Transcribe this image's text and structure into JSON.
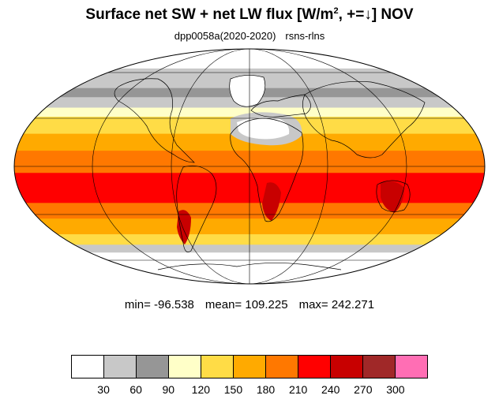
{
  "title": {
    "main": "Surface net SW + net LW flux [W/m",
    "sup": "2",
    "rest": ", +=↓]  NOV"
  },
  "subtitle": {
    "left": "dpp0058a(2020-2020)",
    "right": "rsns-rlns"
  },
  "stats": {
    "min": "min= -96.538",
    "mean": "mean= 109.225",
    "max": "max= 242.271"
  },
  "colorbar": {
    "colors": [
      "#ffffff",
      "#c8c8c8",
      "#969696",
      "#ffffc8",
      "#ffdc46",
      "#ffaa00",
      "#ff7800",
      "#ff0000",
      "#c80000",
      "#a02828",
      "#ff6eb4"
    ],
    "labels": [
      "30",
      "60",
      "90",
      "120",
      "150",
      "180",
      "210",
      "240",
      "270",
      "300"
    ]
  },
  "map_bands": [
    {
      "from_lat": 90,
      "to_lat": 75,
      "color": "#ffffff"
    },
    {
      "from_lat": 75,
      "to_lat": 60,
      "color": "#c8c8c8"
    },
    {
      "from_lat": 60,
      "to_lat": 53,
      "color": "#969696"
    },
    {
      "from_lat": 53,
      "to_lat": 45,
      "color": "#c8c8c8"
    },
    {
      "from_lat": 45,
      "to_lat": 38,
      "color": "#ffffc8"
    },
    {
      "from_lat": 38,
      "to_lat": 25,
      "color": "#ffdc46"
    },
    {
      "from_lat": 25,
      "to_lat": 12,
      "color": "#ffaa00"
    },
    {
      "from_lat": 12,
      "to_lat": -5,
      "color": "#ff7800"
    },
    {
      "from_lat": -5,
      "to_lat": -28,
      "color": "#ff0000"
    },
    {
      "from_lat": -28,
      "to_lat": -40,
      "color": "#ff7800"
    },
    {
      "from_lat": -40,
      "to_lat": -52,
      "color": "#ffaa00"
    },
    {
      "from_lat": -52,
      "to_lat": -60,
      "color": "#ffdc46"
    },
    {
      "from_lat": -60,
      "to_lat": -66,
      "color": "#c8c8c8"
    },
    {
      "from_lat": -66,
      "to_lat": -90,
      "color": "#ffffff"
    }
  ]
}
